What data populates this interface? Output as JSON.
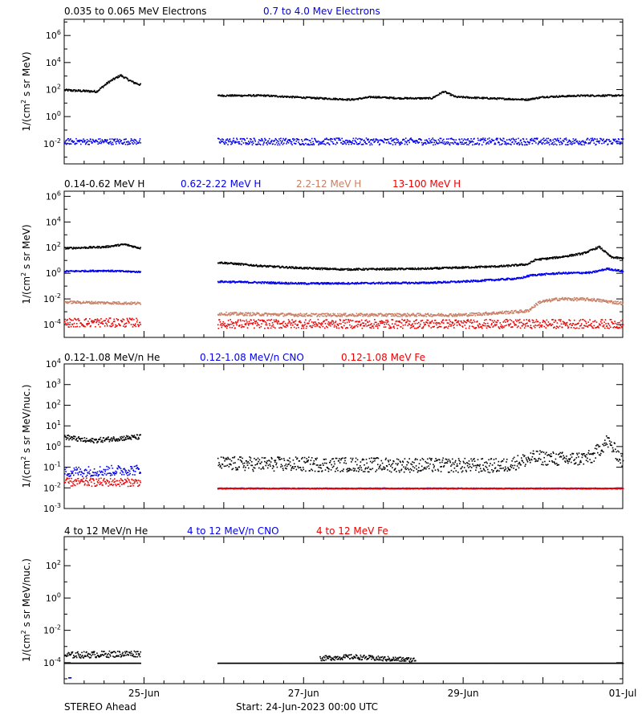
{
  "footer": {
    "spacecraft": "STEREO Ahead",
    "start": "Start: 24-Jun-2023 00:00 UTC"
  },
  "x_axis": {
    "ticks": [
      {
        "day": 1,
        "label": "25-Jun"
      },
      {
        "day": 3,
        "label": "27-Jun"
      },
      {
        "day": 5,
        "label": "29-Jun"
      },
      {
        "day": 7,
        "label": "01-Jul"
      }
    ],
    "range_days": [
      0,
      7
    ]
  },
  "colors": {
    "black": "#000000",
    "blue": "#0000ee",
    "tan": "#c87f64",
    "red": "#ee0000"
  },
  "chart_data": [
    {
      "type": "scatter",
      "legend": [
        {
          "label": "0.035 to 0.065 MeV Electrons",
          "color": "#000000"
        },
        {
          "label": "0.7 to 4.0 Mev Electrons",
          "color": "#0000ee"
        }
      ],
      "ylabel": "1/(cm^2 s sr MeV)",
      "yscale": "log",
      "ylim_exp": [
        -3.5,
        7.2
      ],
      "ytick_exps": [
        -2,
        0,
        2,
        4,
        6
      ],
      "ytick_labels": [
        "10^-2",
        "10^0",
        "10^2",
        "10^4",
        "10^6"
      ],
      "series": [
        {
          "color": "#000000",
          "points_log10": [
            [
              0,
              2.0
            ],
            [
              0.4,
              1.9
            ],
            [
              0.55,
              2.6
            ],
            [
              0.7,
              3.1
            ],
            [
              0.85,
              2.6
            ],
            [
              0.95,
              2.4
            ]
          ],
          "noise": 0.08
        },
        {
          "color": "#000000",
          "points_log10": [
            [
              1.92,
              1.6
            ],
            [
              2.5,
              1.6
            ],
            [
              3.0,
              1.45
            ],
            [
              3.6,
              1.3
            ],
            [
              3.85,
              1.5
            ],
            [
              4.2,
              1.4
            ],
            [
              4.6,
              1.4
            ],
            [
              4.75,
              1.9
            ],
            [
              4.9,
              1.5
            ],
            [
              5.3,
              1.4
            ],
            [
              5.8,
              1.3
            ],
            [
              6.0,
              1.5
            ],
            [
              6.5,
              1.6
            ],
            [
              7.0,
              1.6
            ]
          ],
          "noise": 0.06
        },
        {
          "color": "#0000ee",
          "points_log10": [
            [
              0,
              -1.8
            ],
            [
              0.95,
              -1.8
            ]
          ],
          "noise": 0.22
        },
        {
          "color": "#0000ee",
          "points_log10": [
            [
              1.92,
              -1.8
            ],
            [
              7.0,
              -1.8
            ]
          ],
          "noise": 0.25
        }
      ]
    },
    {
      "type": "scatter",
      "legend": [
        {
          "label": "0.14-0.62 MeV H",
          "color": "#000000"
        },
        {
          "label": "0.62-2.22 MeV H",
          "color": "#0000ee"
        },
        {
          "label": "2.2-12 MeV H",
          "color": "#c87f64"
        },
        {
          "label": "13-100 MeV H",
          "color": "#ee0000"
        }
      ],
      "ylabel": "1/(cm^2 s sr MeV)",
      "yscale": "log",
      "ylim_exp": [
        -5.0,
        6.4
      ],
      "ytick_exps": [
        -4,
        -2,
        0,
        2,
        4,
        6
      ],
      "ytick_labels": [
        "10^-4",
        "10^-2",
        "10^0",
        "10^2",
        "10^4",
        "10^6"
      ],
      "series": [
        {
          "color": "#000000",
          "points_log10": [
            [
              0,
              2.0
            ],
            [
              0.5,
              2.1
            ],
            [
              0.75,
              2.3
            ],
            [
              0.95,
              2.0
            ]
          ],
          "noise": 0.07
        },
        {
          "color": "#000000",
          "points_log10": [
            [
              1.92,
              0.9
            ],
            [
              2.5,
              0.6
            ],
            [
              3.0,
              0.45
            ],
            [
              3.5,
              0.35
            ],
            [
              4.5,
              0.4
            ],
            [
              5.0,
              0.5
            ],
            [
              5.5,
              0.6
            ],
            [
              5.8,
              0.75
            ],
            [
              5.9,
              1.1
            ],
            [
              6.2,
              1.3
            ],
            [
              6.5,
              1.6
            ],
            [
              6.7,
              2.1
            ],
            [
              6.85,
              1.3
            ],
            [
              7.0,
              1.2
            ]
          ],
          "noise": 0.07
        },
        {
          "color": "#0000ee",
          "points_log10": [
            [
              0,
              0.2
            ],
            [
              0.5,
              0.25
            ],
            [
              0.95,
              0.15
            ]
          ],
          "noise": 0.06
        },
        {
          "color": "#0000ee",
          "points_log10": [
            [
              1.92,
              -0.6
            ],
            [
              3.0,
              -0.75
            ],
            [
              4.5,
              -0.7
            ],
            [
              5.0,
              -0.6
            ],
            [
              5.7,
              -0.35
            ],
            [
              5.85,
              -0.1
            ],
            [
              6.2,
              0.05
            ],
            [
              6.6,
              0.1
            ],
            [
              6.8,
              0.4
            ],
            [
              7.0,
              0.2
            ]
          ],
          "noise": 0.07
        },
        {
          "color": "#c87f64",
          "points_log10": [
            [
              0,
              -2.2
            ],
            [
              0.95,
              -2.3
            ]
          ],
          "noise": 0.1
        },
        {
          "color": "#c87f64",
          "points_log10": [
            [
              1.92,
              -3.1
            ],
            [
              3.0,
              -3.2
            ],
            [
              5.0,
              -3.2
            ],
            [
              5.8,
              -2.9
            ],
            [
              5.95,
              -2.2
            ],
            [
              6.2,
              -1.95
            ],
            [
              6.6,
              -2.0
            ],
            [
              7.0,
              -2.3
            ]
          ],
          "noise": 0.12
        },
        {
          "color": "#ee0000",
          "points_log10": [
            [
              0,
              -3.8
            ],
            [
              0.95,
              -3.8
            ]
          ],
          "noise": 0.35
        },
        {
          "color": "#ee0000",
          "points_log10": [
            [
              1.92,
              -3.9
            ],
            [
              7.0,
              -3.9
            ]
          ],
          "noise": 0.35
        }
      ]
    },
    {
      "type": "scatter",
      "legend": [
        {
          "label": "0.12-1.08 MeV/n He",
          "color": "#000000"
        },
        {
          "label": "0.12-1.08 MeV/n CNO",
          "color": "#0000ee"
        },
        {
          "label": "0.12-1.08 MeV Fe",
          "color": "#ee0000"
        }
      ],
      "ylabel": "1/(cm^2 s sr MeV/nuc.)",
      "yscale": "log",
      "ylim_exp": [
        -3.0,
        4.0
      ],
      "ytick_exps": [
        -3,
        -2,
        -1,
        0,
        1,
        2,
        3,
        4
      ],
      "ytick_labels": [
        "10^-3",
        "10^-2",
        "10^-1",
        "10^0",
        "10^1",
        "10^2",
        "10^3",
        "10^4"
      ],
      "series": [
        {
          "color": "#000000",
          "points_log10": [
            [
              0,
              0.5
            ],
            [
              0.3,
              0.3
            ],
            [
              0.6,
              0.4
            ],
            [
              0.95,
              0.5
            ]
          ],
          "noise": 0.12
        },
        {
          "color": "#000000",
          "points_log10": [
            [
              1.92,
              -0.8
            ],
            [
              5.5,
              -0.9
            ],
            [
              5.7,
              -0.7
            ],
            [
              5.9,
              -0.5
            ],
            [
              6.3,
              -0.6
            ],
            [
              6.6,
              -0.5
            ],
            [
              6.8,
              0.3
            ],
            [
              7.0,
              -0.7
            ]
          ],
          "noise": 0.35
        },
        {
          "color": "#0000ee",
          "points_log10": [
            [
              0,
              -1.2
            ],
            [
              0.95,
              -1.1
            ]
          ],
          "noise": 0.25
        },
        {
          "color": "#0000ee",
          "points_log10": [
            [
              1.92,
              -2.0
            ],
            [
              7.0,
              -2.0
            ]
          ],
          "noise": 0.02
        },
        {
          "color": "#ee0000",
          "points_log10": [
            [
              0,
              -1.7
            ],
            [
              0.95,
              -1.7
            ]
          ],
          "noise": 0.2
        },
        {
          "color": "#ee0000",
          "points_log10": [
            [
              1.92,
              -2.0
            ],
            [
              7.0,
              -2.0
            ]
          ],
          "noise": 0.02
        }
      ]
    },
    {
      "type": "scatter",
      "legend": [
        {
          "label": "4 to 12 MeV/n He",
          "color": "#000000"
        },
        {
          "label": "4 to 12 MeV/n CNO",
          "color": "#0000ee"
        },
        {
          "label": "4 to 12 MeV Fe",
          "color": "#ee0000"
        }
      ],
      "ylabel": "1/(cm^2 s sr MeV/nuc.)",
      "yscale": "log",
      "ylim_exp": [
        -5.3,
        3.8
      ],
      "ytick_exps": [
        -4,
        -2,
        0,
        2
      ],
      "ytick_labels": [
        "10^-4",
        "10^-2",
        "10^0",
        "10^2"
      ],
      "series": [
        {
          "color": "#000000",
          "points_log10": [
            [
              0,
              -4.0
            ],
            [
              0.95,
              -4.0
            ]
          ],
          "noise": 0.0
        },
        {
          "color": "#000000",
          "points_log10": [
            [
              0,
              -3.5
            ],
            [
              0.95,
              -3.4
            ]
          ],
          "noise": 0.2
        },
        {
          "color": "#000000",
          "points_log10": [
            [
              1.92,
              -4.0
            ],
            [
              7.0,
              -4.0
            ]
          ],
          "noise": 0.0
        },
        {
          "color": "#000000",
          "points_log10": [
            [
              3.2,
              -3.7
            ],
            [
              3.6,
              -3.6
            ],
            [
              3.9,
              -3.7
            ],
            [
              4.4,
              -3.8
            ]
          ],
          "noise": 0.15
        },
        {
          "color": "#0000ee",
          "points_log10": [
            [
              0.05,
              -4.9
            ],
            [
              0.08,
              -4.9
            ]
          ],
          "noise": 0.0
        }
      ]
    }
  ]
}
